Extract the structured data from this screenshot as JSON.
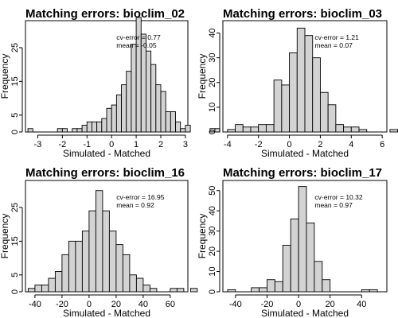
{
  "chart_data": [
    {
      "type": "bar",
      "title": "Matching errors: bioclim_02",
      "xlabel": "Simulated - Matched",
      "ylabel": "Frequency",
      "annotations": [
        "cv-error = 0.77",
        "mean = -0.05"
      ],
      "xlim": [
        -3.5,
        3.1
      ],
      "ylim": [
        0,
        33
      ],
      "xticks": [
        -3,
        -2,
        -1,
        0,
        1,
        2,
        3
      ],
      "yticks": [
        0,
        5,
        15,
        25
      ],
      "bin_width": 0.2,
      "bin_start": -3.4,
      "values": [
        1,
        0,
        0,
        0,
        0,
        0,
        1,
        1,
        0,
        1,
        1,
        2,
        3,
        3,
        3,
        4,
        7,
        8,
        11,
        14,
        18,
        26,
        34,
        29,
        24,
        20,
        14,
        12,
        6,
        6,
        3,
        1,
        2,
        0,
        0,
        0,
        0,
        1,
        1,
        0,
        0,
        0,
        0
      ]
    },
    {
      "type": "bar",
      "title": "Matching errors: bioclim_03",
      "xlabel": "Simulated - Matched",
      "ylabel": "Frequency",
      "annotations": [
        "cv-error = 1.21",
        "mean = 0.07"
      ],
      "xlim": [
        -4.3,
        6.3
      ],
      "ylim": [
        0,
        45
      ],
      "xticks": [
        -4,
        -2,
        0,
        2,
        4,
        6
      ],
      "yticks": [
        0,
        10,
        20,
        30,
        40
      ],
      "bin_width": 0.5,
      "bin_start": -4,
      "values": [
        1,
        3,
        2,
        2,
        3,
        3,
        21,
        19,
        32,
        42,
        39,
        30,
        16,
        11,
        3,
        2,
        2,
        1,
        0,
        0,
        0,
        1
      ]
    },
    {
      "type": "bar",
      "title": "Matching errors: bioclim_16",
      "xlabel": "Simulated - Matched",
      "ylabel": "Frequency",
      "annotations": [
        "cv-error = 16.95",
        "mean = 0.92"
      ],
      "xlim": [
        -47,
        73
      ],
      "ylim": [
        0,
        33
      ],
      "xticks": [
        -40,
        -20,
        0,
        20,
        40,
        60
      ],
      "yticks": [
        0,
        5,
        15,
        25
      ],
      "bin_width": 5,
      "bin_start": -45,
      "values": [
        1,
        2,
        2,
        4,
        6,
        11,
        15,
        15,
        18,
        24,
        30,
        24,
        18,
        14,
        11,
        5,
        4,
        2,
        1,
        0,
        0,
        1,
        1,
        0,
        1
      ]
    },
    {
      "type": "bar",
      "title": "Matching errors: bioclim_17",
      "xlabel": "Simulated - Matched",
      "ylabel": "Frequency",
      "annotations": [
        "cv-error = 10.32",
        "mean = 0.97"
      ],
      "xlim": [
        -48,
        56
      ],
      "ylim": [
        0,
        55
      ],
      "xticks": [
        -40,
        -20,
        0,
        20,
        40
      ],
      "yticks": [
        0,
        10,
        20,
        30,
        40,
        50
      ],
      "bin_width": 5,
      "bin_start": -45,
      "values": [
        1,
        0,
        0,
        2,
        2,
        6,
        5,
        23,
        36,
        52,
        34,
        15,
        6,
        0,
        0,
        0,
        0,
        1,
        1
      ]
    }
  ]
}
